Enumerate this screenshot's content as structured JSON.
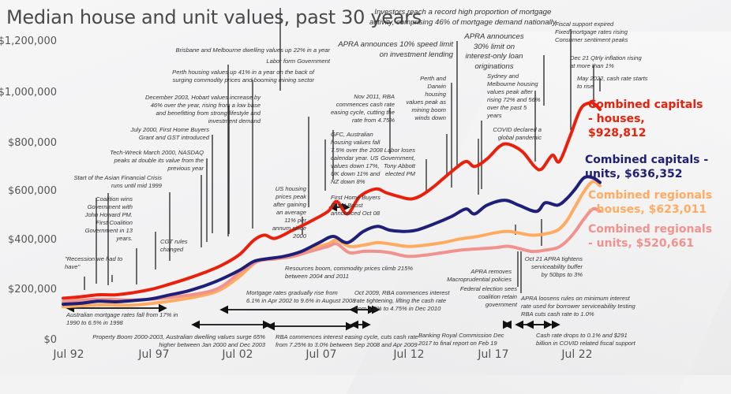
{
  "chart_data": {
    "type": "line",
    "title": "Median house and unit values, past 30 years",
    "xlabel": "",
    "ylabel": "",
    "x_range": [
      1992.5,
      2022.9
    ],
    "ylim": [
      0,
      1200000
    ],
    "grid": false,
    "yticks": [
      "$1,200,000",
      "$1,000,000",
      "$800,000",
      "$600,000",
      "$400,000",
      "$200,000",
      "$0"
    ],
    "ytick_values": [
      1200000,
      1000000,
      800000,
      600000,
      400000,
      200000,
      0
    ],
    "xticks": [
      "Jul 92",
      "Jul 97",
      "Jul 02",
      "Jul 07",
      "Jul 12",
      "Jul 17",
      "Jul 22"
    ],
    "xtick_values": [
      1992.5,
      1997.5,
      2002.5,
      2007.5,
      2012.5,
      2017.5,
      2022.5
    ],
    "legend_placement": "right",
    "series": [
      {
        "name": "Combined capitals - houses",
        "label": "Combined capitals - houses, $928,812",
        "color": "#e8200c",
        "x": [
          1992.5,
          1993.5,
          1994.5,
          1995.5,
          1996.5,
          1997.5,
          1998.5,
          1999.5,
          2000.5,
          2001.5,
          2002.5,
          2003.3,
          2003.9,
          2004.5,
          2005.5,
          2006.5,
          2007.5,
          2008.0,
          2008.6,
          2009.3,
          2010.2,
          2010.8,
          2011.5,
          2012.2,
          2012.8,
          2013.5,
          2014.5,
          2015.3,
          2015.8,
          2016.5,
          2017.2,
          2017.7,
          2018.5,
          2019.2,
          2019.6,
          2020.2,
          2020.6,
          2021.2,
          2021.8,
          2022.3,
          2022.6,
          2022.9
        ],
        "values": [
          172000,
          178000,
          186000,
          186000,
          195000,
          208000,
          228000,
          250000,
          275000,
          305000,
          348000,
          405000,
          425000,
          412000,
          445000,
          480000,
          520000,
          560000,
          510000,
          580000,
          610000,
          595000,
          580000,
          570000,
          585000,
          620000,
          680000,
          720000,
          700000,
          730000,
          780000,
          790000,
          760000,
          700000,
          690000,
          745000,
          720000,
          820000,
          930000,
          955000,
          950000,
          928812
        ]
      },
      {
        "name": "Combined capitals - units",
        "label": "Combined capitals - units, $636,352",
        "color": "#1f1f78",
        "x": [
          1992.5,
          1993.5,
          1994.5,
          1995.5,
          1996.5,
          1997.5,
          1998.5,
          1999.5,
          2000.5,
          2001.5,
          2002.5,
          2003.3,
          2004.0,
          2005.0,
          2006.0,
          2007.0,
          2007.8,
          2008.6,
          2009.5,
          2010.3,
          2011.0,
          2011.8,
          2012.5,
          2013.5,
          2014.5,
          2015.3,
          2015.8,
          2016.5,
          2017.5,
          2018.3,
          2019.3,
          2019.8,
          2020.5,
          2021.0,
          2021.5,
          2022.0,
          2022.5,
          2022.9
        ],
        "values": [
          148000,
          152000,
          160000,
          158000,
          163000,
          170000,
          185000,
          200000,
          222000,
          250000,
          285000,
          320000,
          330000,
          340000,
          360000,
          395000,
          420000,
          395000,
          440000,
          460000,
          445000,
          440000,
          445000,
          470000,
          500000,
          530000,
          510000,
          545000,
          565000,
          545000,
          520000,
          555000,
          545000,
          570000,
          610000,
          655000,
          655000,
          636352
        ]
      },
      {
        "name": "Combined regionals - houses",
        "label": "Combined regionals - houses, $623,011",
        "color": "#ffac62",
        "x": [
          1992.5,
          1994.5,
          1996.5,
          1998.5,
          2000.5,
          2001.5,
          2002.5,
          2003.5,
          2004.5,
          2005.5,
          2006.5,
          2007.5,
          2008.0,
          2008.7,
          2009.5,
          2010.3,
          2011.0,
          2012.0,
          2013.0,
          2014.0,
          2015.0,
          2016.0,
          2017.0,
          2017.8,
          2019.0,
          2019.8,
          2020.5,
          2021.0,
          2021.5,
          2022.0,
          2022.5,
          2022.9
        ],
        "values": [
          138000,
          145000,
          145000,
          160000,
          185000,
          210000,
          260000,
          320000,
          330000,
          340000,
          370000,
          390000,
          405000,
          380000,
          385000,
          395000,
          390000,
          380000,
          385000,
          395000,
          410000,
          420000,
          435000,
          440000,
          425000,
          430000,
          445000,
          480000,
          540000,
          600000,
          640000,
          623011
        ]
      },
      {
        "name": "Combined regionals - units",
        "label": "Combined regionals - units, $520,661",
        "color": "#f0928e",
        "x": [
          1992.5,
          1994.5,
          1996.5,
          1998.5,
          2000.5,
          2001.5,
          2002.5,
          2003.5,
          2004.5,
          2005.5,
          2006.5,
          2007.5,
          2008.0,
          2008.7,
          2009.5,
          2010.3,
          2011.0,
          2012.0,
          2013.0,
          2014.0,
          2015.0,
          2016.0,
          2017.0,
          2017.8,
          2019.0,
          2019.8,
          2020.5,
          2021.0,
          2021.5,
          2022.0,
          2022.5,
          2022.9
        ],
        "values": [
          158000,
          168000,
          165000,
          175000,
          195000,
          220000,
          275000,
          320000,
          330000,
          340000,
          360000,
          380000,
          390000,
          355000,
          360000,
          360000,
          355000,
          340000,
          345000,
          355000,
          365000,
          370000,
          375000,
          380000,
          360000,
          365000,
          375000,
          400000,
          440000,
          490000,
          530000,
          520661
        ]
      }
    ],
    "annotations": [
      {
        "text": [
          "Investors reach a record high proportion of mortgage",
          "activity, comprising 46% of mortgage demand nationally"
        ]
      },
      {
        "text": [
          "Fiscal support expired",
          "Fixed mortgage rates rising",
          "Consumer sentiment peaks"
        ]
      },
      {
        "text": [
          "Dec 21 Qtrly inflation rising",
          "at more than 1%"
        ]
      },
      {
        "text": [
          "May 2022, cash rate starts",
          "to rise"
        ]
      },
      {
        "text": [
          "APRA announces 10% speed limit",
          "on investment lending"
        ]
      },
      {
        "text": [
          "APRA announces",
          "30% limit on",
          "interest-only loan",
          "originations"
        ]
      },
      {
        "text": [
          "Brisbane and Melbourne dwelling values up 22% in a year"
        ]
      },
      {
        "text": [
          "Labor form Government"
        ]
      },
      {
        "text": [
          "Perth housing values up 41% in a year on the back of",
          "surging commodity prices and booming mining sector"
        ]
      },
      {
        "text": [
          "December 2003, Hobart values increase by",
          "46% over the year, rising from a low base",
          "and benefitting from strong lifestyle and",
          "investment demand"
        ]
      },
      {
        "text": [
          "July 2000, First Home Buyers",
          "Grant and GST introduced"
        ]
      },
      {
        "text": [
          "Tech-Wreck March 2000, NASDAQ",
          "peaks at double its value from the",
          "previous year"
        ]
      },
      {
        "text": [
          "Start of the Asian Financial Crisis",
          "runs until mid 1999"
        ]
      },
      {
        "text": [
          "Coalition wins",
          "Government with",
          "John Howard PM.",
          "First Coalition",
          "Government in 13",
          "years."
        ]
      },
      {
        "text": [
          "CGT rules",
          "changed"
        ]
      },
      {
        "text": [
          "\"Recession we had to",
          "have\""
        ]
      },
      {
        "text": [
          "US housing",
          "prices peak",
          "after gaining",
          "an average",
          "11% per",
          "annum since",
          "2000"
        ]
      },
      {
        "text": [
          "Nov 2011, RBA",
          "commences cash rate",
          "easing cycle, cutting the",
          "rate from 4.75%"
        ]
      },
      {
        "text": [
          "GFC, Australian",
          "housing values fall",
          "7.5% over the 2008",
          "calendar year.  US",
          "values down 17%,",
          "UK down 11% and",
          "NZ down 8%",
          "",
          "First Home Buyers",
          "Grant Boost",
          "announced Oct 08"
        ]
      },
      {
        "text": [
          "Perth and",
          "Darwin",
          "housing",
          "values peak as",
          "mining boom",
          "winds down"
        ]
      },
      {
        "text": [
          "Labor loses",
          "Government,",
          "Tony Abbott",
          "elected PM"
        ]
      },
      {
        "text": [
          "Sydney and",
          "Melbourne housing",
          "values peak after",
          "rising 72% and 56%",
          "over the past 5",
          "years"
        ]
      },
      {
        "text": [
          "COVID declared a",
          "global pandemic"
        ]
      },
      {
        "text": [
          "Oct 21 APRA tightens",
          "serviceability buffer",
          "by 50bps to 3%"
        ]
      },
      {
        "text": [
          "APRA removes",
          "Macroprudential policies"
        ]
      },
      {
        "text": [
          "Federal election sees",
          "coalition retain",
          "government"
        ]
      },
      {
        "text": [
          "APRA loosens rules on minimum interest",
          "rate used for borrower serviceability testing",
          "RBA cuts cash rate to 1.0%"
        ]
      },
      {
        "text": [
          "Resources boom, commodity prices climb 215%",
          "between 2004 and 2011"
        ]
      },
      {
        "text": [
          "Mortgage rates gradually rise from",
          "6.1% in Apr 2002 to 9.6% in August 2008"
        ]
      },
      {
        "text": [
          "Oct 2009, RBA commences interest",
          "rate tightening, lifting the cash rate",
          "from 3.0% to 4.75% in Dec 2010"
        ]
      },
      {
        "text": [
          "Australian mortgage rates fall from 17% in",
          "1990 to 6.5% in 1998"
        ]
      },
      {
        "text": [
          "Property Boom 2000-2003, Australian dwelling values surge 65%",
          "higher between Jan 2000 and Dec 2003"
        ]
      },
      {
        "text": [
          "RBA commences interest easing cycle, cuts cash rate",
          "from 7.25% to 3.0% between Sep 2008 and Apr 2009"
        ]
      },
      {
        "text": [
          "Banking Royal Commission Dec",
          "2017 to final report on Feb 19"
        ]
      },
      {
        "text": [
          "Cash rate drops to 0.1% and  $291",
          "billion in COVID related fiscal support"
        ]
      }
    ]
  }
}
